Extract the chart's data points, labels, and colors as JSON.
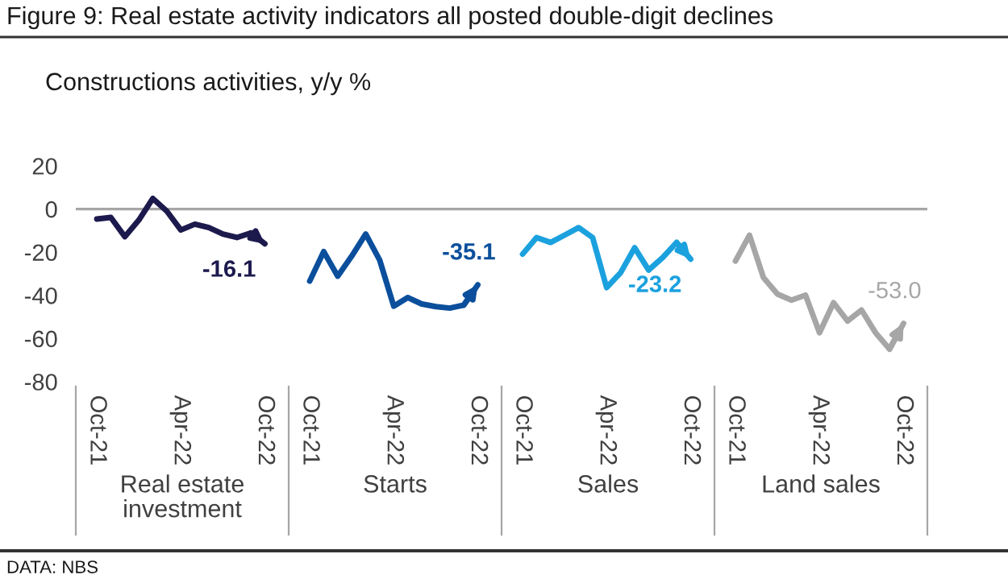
{
  "chart_data": [
    {
      "type": "line",
      "title": "Figure 9: Real estate activity indicators all posted double-digit declines",
      "subtitle": "Constructions activities, y/y %",
      "annotations": [
        "DATA: NBS"
      ],
      "xlabel": "Real estate\ninvestment",
      "categories": [
        "Oct-21",
        null,
        null,
        null,
        null,
        null,
        "Apr-22",
        null,
        null,
        null,
        null,
        null,
        "Oct-22"
      ],
      "ylim": [
        -80,
        20
      ],
      "yticks": [
        20,
        0,
        -20,
        -40,
        -60,
        -80
      ],
      "ref_lines": [
        {
          "axis": "y",
          "value": 0,
          "color": "#a6a6a6"
        }
      ],
      "series": [
        {
          "color": "#1c1a4d",
          "values": [
            -4.6,
            -3.9,
            -12.8,
            -5.1,
            4.9,
            -1,
            -9.7,
            -7.0,
            -8.6,
            -11.6,
            -13.2,
            -11.1,
            -16.1
          ],
          "value_labels": [
            null,
            null,
            null,
            null,
            null,
            null,
            null,
            null,
            null,
            null,
            null,
            null,
            "-16.1"
          ]
        }
      ]
    },
    {
      "type": "line",
      "xlabel": "Starts",
      "categories": [
        "Oct-21",
        null,
        null,
        null,
        null,
        null,
        "Apr-22",
        null,
        null,
        null,
        null,
        null,
        "Oct-22"
      ],
      "ylim": [
        -80,
        20
      ],
      "yticks": [
        20,
        0,
        -20,
        -40,
        -60,
        -80
      ],
      "tick_labels": "x",
      "ref_lines": [
        {
          "axis": "y",
          "value": 0,
          "color": "#a6a6a6"
        }
      ],
      "series": [
        {
          "color": "#0b4f9c",
          "values": [
            -33.4,
            -19.7,
            -31.1,
            -21.8,
            -11.6,
            -23.7,
            -45,
            -41,
            -44,
            -45.2,
            -45.9,
            -44.5,
            -35.1
          ],
          "value_labels": [
            null,
            null,
            null,
            null,
            null,
            null,
            null,
            null,
            null,
            null,
            null,
            null,
            "-35.1"
          ]
        }
      ]
    },
    {
      "type": "line",
      "xlabel": "Sales",
      "categories": [
        "Oct-21",
        null,
        null,
        null,
        null,
        null,
        "Apr-22",
        null,
        null,
        null,
        null,
        null,
        "Oct-22"
      ],
      "ylim": [
        -80,
        20
      ],
      "yticks": [
        20,
        0,
        -20,
        -40,
        -60,
        -80
      ],
      "tick_labels": "x",
      "ref_lines": [
        {
          "axis": "y",
          "value": 0,
          "color": "#a6a6a6"
        }
      ],
      "series": [
        {
          "color": "#1ba1de",
          "values": [
            -20.9,
            -13.2,
            -15.5,
            -12.1,
            -8.6,
            -13.2,
            -36.4,
            -29.5,
            -17.9,
            -28.3,
            -22.5,
            -15.5,
            -23.2
          ],
          "value_labels": [
            null,
            null,
            null,
            null,
            null,
            null,
            null,
            null,
            null,
            null,
            null,
            null,
            "-23.2"
          ]
        }
      ]
    },
    {
      "type": "line",
      "xlabel": "Land sales",
      "categories": [
        "Oct-21",
        null,
        null,
        null,
        null,
        null,
        "Apr-22",
        null,
        null,
        null,
        null,
        null,
        "Oct-22"
      ],
      "ylim": [
        -80,
        20
      ],
      "yticks": [
        20,
        0,
        -20,
        -40,
        -60,
        -80
      ],
      "tick_labels": "x",
      "ref_lines": [
        {
          "axis": "y",
          "value": 0,
          "color": "#a6a6a6"
        }
      ],
      "series": [
        {
          "color": "#a6a6a6",
          "values": [
            -24.1,
            -12.1,
            -31.8,
            -39.4,
            -42.2,
            -39.9,
            -57.3,
            -43.4,
            -51.9,
            -46.8,
            -57.3,
            -64.9,
            -53.0
          ],
          "value_labels": [
            null,
            null,
            null,
            null,
            null,
            null,
            null,
            null,
            null,
            null,
            null,
            null,
            "-53.0"
          ]
        }
      ]
    }
  ]
}
